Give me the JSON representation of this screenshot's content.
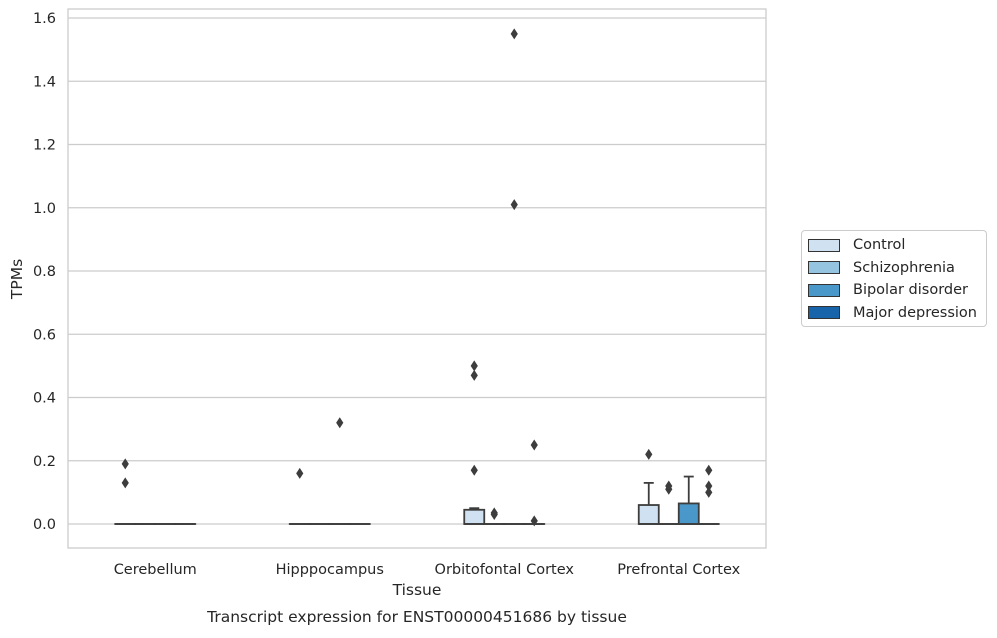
{
  "chart_data": {
    "type": "box",
    "title": "Transcript expression for ENST00000451686 by tissue",
    "xlabel": "Tissue",
    "ylabel": "TPMs",
    "ylim": [
      -0.075,
      1.63
    ],
    "yticks": [
      "0.0",
      "0.2",
      "0.4",
      "0.6",
      "0.8",
      "1.0",
      "1.2",
      "1.4",
      "1.6"
    ],
    "ytick_values": [
      0,
      0.2,
      0.4,
      0.6,
      0.8,
      1.0,
      1.2,
      1.4,
      1.6
    ],
    "grid": true,
    "legend_position": "right",
    "categories": [
      "Cerebellum",
      "Hipppocampus",
      "Orbitofontal Cortex",
      "Prefrontal Cortex"
    ],
    "series": [
      {
        "name": "Control",
        "color": "#d0e1f2",
        "boxes": [
          {
            "q1": 0,
            "median": 0,
            "q3": 0,
            "whisker_low": 0,
            "whisker_high": 0,
            "outliers": [
              0.19,
              0.13
            ]
          },
          {
            "q1": 0,
            "median": 0,
            "q3": 0,
            "whisker_low": 0,
            "whisker_high": 0,
            "outliers": [
              0.16
            ]
          },
          {
            "q1": 0,
            "median": 0,
            "q3": 0.045,
            "whisker_low": 0,
            "whisker_high": 0.05,
            "outliers": [
              0.5,
              0.47,
              0.17
            ]
          },
          {
            "q1": 0,
            "median": 0,
            "q3": 0.06,
            "whisker_low": 0,
            "whisker_high": 0.13,
            "outliers": [
              0.22
            ]
          }
        ]
      },
      {
        "name": "Schizophrenia",
        "color": "#94c4df",
        "boxes": [
          {
            "q1": 0,
            "median": 0,
            "q3": 0,
            "whisker_low": 0,
            "whisker_high": 0,
            "outliers": []
          },
          {
            "q1": 0,
            "median": 0,
            "q3": 0,
            "whisker_low": 0,
            "whisker_high": 0,
            "outliers": []
          },
          {
            "q1": 0,
            "median": 0,
            "q3": 0,
            "whisker_low": 0,
            "whisker_high": 0,
            "outliers": [
              0.035,
              0.03
            ]
          },
          {
            "q1": 0,
            "median": 0,
            "q3": 0,
            "whisker_low": 0,
            "whisker_high": 0,
            "outliers": [
              0.12,
              0.11
            ]
          }
        ]
      },
      {
        "name": "Bipolar disorder",
        "color": "#4a98c9",
        "boxes": [
          {
            "q1": 0,
            "median": 0,
            "q3": 0,
            "whisker_low": 0,
            "whisker_high": 0,
            "outliers": []
          },
          {
            "q1": 0,
            "median": 0,
            "q3": 0,
            "whisker_low": 0,
            "whisker_high": 0,
            "outliers": [
              0.32
            ]
          },
          {
            "q1": 0,
            "median": 0,
            "q3": 0,
            "whisker_low": 0,
            "whisker_high": 0,
            "outliers": [
              1.55,
              1.01
            ]
          },
          {
            "q1": 0,
            "median": 0,
            "q3": 0.065,
            "whisker_low": 0,
            "whisker_high": 0.15,
            "outliers": []
          }
        ]
      },
      {
        "name": "Major depression",
        "color": "#1764ab",
        "boxes": [
          {
            "q1": 0,
            "median": 0,
            "q3": 0,
            "whisker_low": 0,
            "whisker_high": 0,
            "outliers": []
          },
          {
            "q1": 0,
            "median": 0,
            "q3": 0,
            "whisker_low": 0,
            "whisker_high": 0,
            "outliers": []
          },
          {
            "q1": 0,
            "median": 0,
            "q3": 0,
            "whisker_low": 0,
            "whisker_high": 0,
            "outliers": [
              0.25,
              0.01
            ]
          },
          {
            "q1": 0,
            "median": 0,
            "q3": 0,
            "whisker_low": 0,
            "whisker_high": 0,
            "outliers": [
              0.17,
              0.12,
              0.1
            ]
          }
        ]
      }
    ]
  }
}
